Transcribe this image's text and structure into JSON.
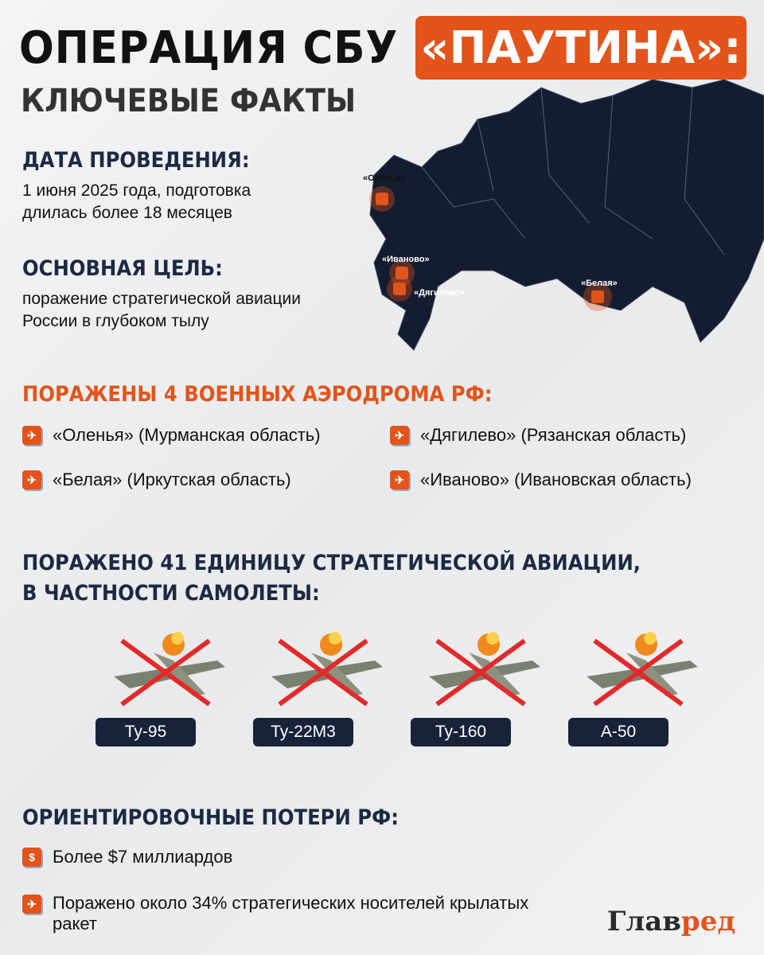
{
  "header": {
    "title": "ОПЕРАЦИЯ СБУ",
    "title_highlight": "«ПАУТИНА»:",
    "subtitle": "КЛЮЧЕВЫЕ ФАКТЫ"
  },
  "date": {
    "heading": "ДАТА ПРОВЕДЕНИЯ:",
    "line1": "1 июня 2025 года, подготовка",
    "line2": "длилась более 18 месяцев"
  },
  "goal": {
    "heading": "ОСНОВНАЯ ЦЕЛЬ:",
    "line1": "поражение стратегической авиации",
    "line2": "России в глубоком тылу"
  },
  "map": {
    "labels": [
      "«Оленья»",
      "«Иваново»",
      "«Дягилево»",
      "«Белая»"
    ],
    "land_color": "#141c30",
    "accent": "#e2541a"
  },
  "airfields": {
    "heading": "ПОРАЖЕНЫ 4 ВОЕННЫХ АЭРОДРОМА РФ:",
    "items": [
      "«Оленья» (Мурманская область)",
      "«Дягилево» (Рязанская область)",
      "«Белая» (Иркутская область)",
      "«Иваново» (Ивановская область)"
    ]
  },
  "aircraft": {
    "heading1": "ПОРАЖЕНО 41 ЕДИНИЦУ СТРАТЕГИЧЕСКОЙ АВИАЦИИ,",
    "heading2": "В ЧАСТНОСТИ САМОЛЕТЫ:",
    "items": [
      "Ту-95",
      "Ту-22М3",
      "Ту-160",
      "А-50"
    ]
  },
  "losses": {
    "heading": "ОРИЕНТИРОВОЧНЫЕ ПОТЕРИ РФ:",
    "items": [
      {
        "icon": "dollar-icon",
        "glyph": "$",
        "text": "Более $7 миллиардов"
      },
      {
        "icon": "crossed-plane-icon",
        "glyph": "✈",
        "text1": "Поражено около 34% стратегических носителей крылатых",
        "text2": "ракет"
      }
    ]
  },
  "brand": {
    "logo_a": "Глав",
    "logo_b": "ред"
  },
  "colors": {
    "accent": "#e2541a",
    "navy": "#1b2a44"
  }
}
